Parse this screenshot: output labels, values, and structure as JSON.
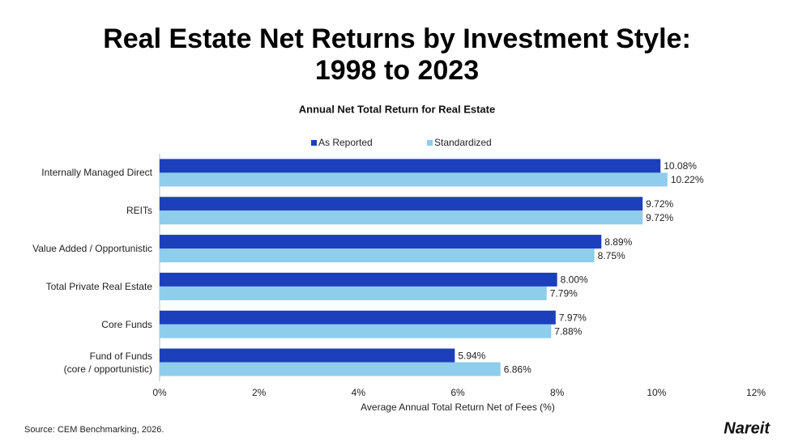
{
  "chart_data": {
    "type": "hbar",
    "title": [
      "Real Estate Net Returns by Investment Style:",
      "1998 to 2023"
    ],
    "subtitle": "Annual Net Total Return for Real Estate",
    "xlabel": "Average Annual Total Return Net of Fees (%)",
    "source": "Source: CEM Benchmarking, 2026.",
    "logo": "Nareit",
    "categories": [
      "Internally Managed Direct",
      "REITs",
      "Value Added / Opportunistic",
      "Total Private Real Estate",
      "Core Funds",
      "Fund of Funds\n(core / opportunistic)"
    ],
    "series": [
      {
        "name": "As Reported",
        "color": "#1c3fbb",
        "values": [
          10.08,
          9.72,
          8.89,
          8.0,
          7.97,
          5.94
        ],
        "value_labels": [
          "10.08%",
          "9.72%",
          "8.89%",
          "8.00%",
          "7.97%",
          "5.94%"
        ]
      },
      {
        "name": "Standardized",
        "color": "#8ecdec",
        "values": [
          10.22,
          9.72,
          8.75,
          7.79,
          7.88,
          6.86
        ],
        "value_labels": [
          "10.22%",
          "9.72%",
          "8.75%",
          "7.79%",
          "7.88%",
          "6.86%"
        ]
      }
    ],
    "xlim": [
      0,
      12
    ],
    "xticks": [
      {
        "value": 0,
        "label": "0%"
      },
      {
        "value": 2,
        "label": "2%"
      },
      {
        "value": 4,
        "label": "4%"
      },
      {
        "value": 6,
        "label": "6%"
      },
      {
        "value": 8,
        "label": "8%"
      },
      {
        "value": 10,
        "label": "10%"
      },
      {
        "value": 12,
        "label": "12%"
      }
    ],
    "legend": "top",
    "grid": false
  }
}
